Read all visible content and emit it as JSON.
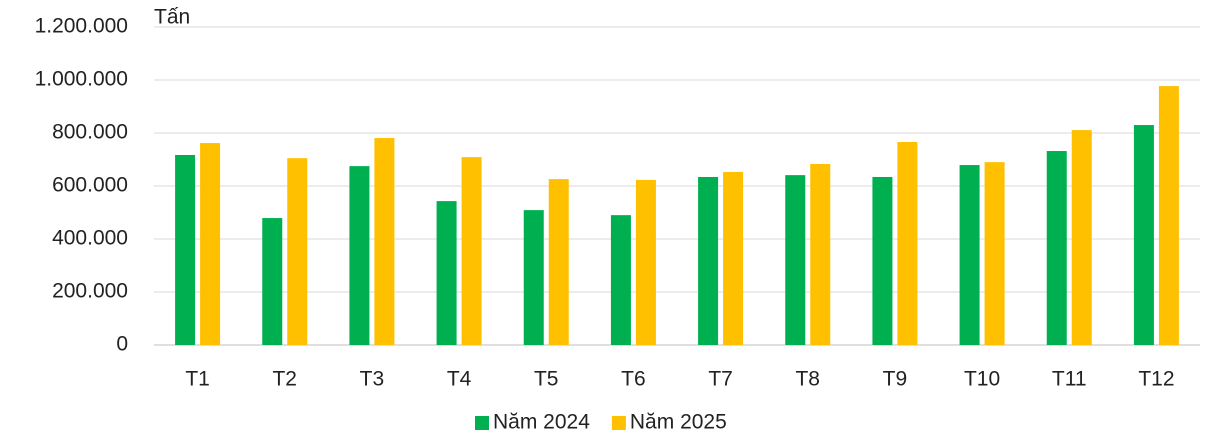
{
  "chart_data": {
    "type": "bar",
    "unit_label": "Tấn",
    "categories": [
      "T1",
      "T2",
      "T3",
      "T4",
      "T5",
      "T6",
      "T7",
      "T8",
      "T9",
      "T10",
      "T11",
      "T12"
    ],
    "series": [
      {
        "name": "Năm 2024",
        "color": "#00b050",
        "values": [
          717000,
          479000,
          675000,
          543000,
          509000,
          490000,
          634000,
          641000,
          634000,
          679000,
          732000,
          830000
        ]
      },
      {
        "name": "Năm 2025",
        "color": "#ffc000",
        "values": [
          762000,
          705000,
          781000,
          709000,
          626000,
          623000,
          653000,
          683000,
          766000,
          690000,
          811000,
          977000
        ]
      }
    ],
    "ylim": [
      0,
      1200000
    ],
    "yticks": [
      0,
      {
        "value": 200000,
        "label": "200.000"
      },
      {
        "value": 400000,
        "label": "400.000"
      },
      {
        "value": 600000,
        "label": "600.000"
      },
      {
        "value": 800000,
        "label": "800.000"
      },
      {
        "value": 1000000,
        "label": "1.000.000"
      },
      {
        "value": 1200000,
        "label": "1.200.000"
      }
    ],
    "grid": true,
    "legend": "bottom"
  }
}
